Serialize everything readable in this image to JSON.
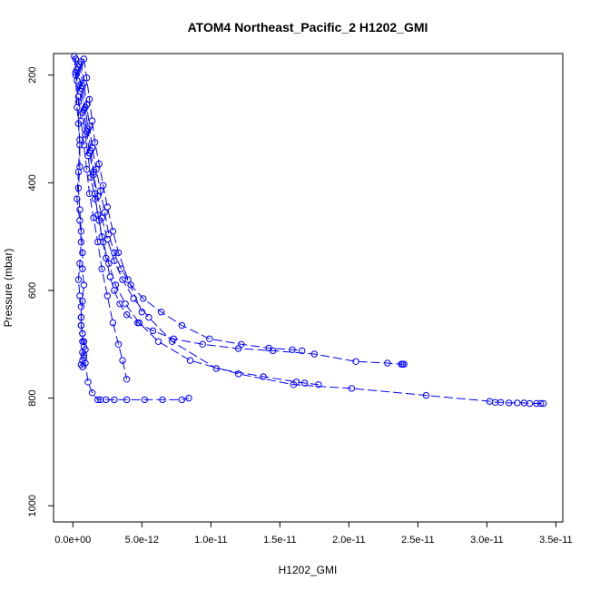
{
  "chart_data": {
    "type": "line",
    "title": "ATOM4 Northeast_Pacific_2 H1202_GMI",
    "xlabel": "H1202_GMI",
    "ylabel": "Pressure (mbar)",
    "xlim": [
      -1.4e-12,
      3.55e-11
    ],
    "ylim": [
      1030,
      160
    ],
    "y_reversed": true,
    "grid": false,
    "x_ticks": [
      {
        "value": 0,
        "label": "0.0e+00"
      },
      {
        "value": 5e-12,
        "label": "5.0e-12"
      },
      {
        "value": 1e-11,
        "label": "1.0e-11"
      },
      {
        "value": 1.5e-11,
        "label": "1.5e-11"
      },
      {
        "value": 2e-11,
        "label": "2.0e-11"
      },
      {
        "value": 2.5e-11,
        "label": "2.5e-11"
      },
      {
        "value": 3e-11,
        "label": "3.0e-11"
      },
      {
        "value": 3.5e-11,
        "label": "3.5e-11"
      }
    ],
    "y_ticks": [
      {
        "value": 200,
        "label": "200"
      },
      {
        "value": 400,
        "label": "400"
      },
      {
        "value": 600,
        "label": "600"
      },
      {
        "value": 800,
        "label": "800"
      },
      {
        "value": 1000,
        "label": "1000"
      }
    ],
    "color": "#0000ff",
    "marker": "open-circle",
    "line_style": "dashed",
    "series": [
      {
        "x": [
          1e-13,
          2e-13,
          3e-13,
          5e-13,
          4e-13,
          3e-13,
          5e-13,
          6e-13,
          5e-13,
          4e-13,
          5e-13,
          6e-13,
          6e-13,
          6e-13,
          7e-13,
          7e-13,
          8e-13,
          7e-13,
          8e-13,
          9e-13,
          1.1e-12,
          1.4e-12,
          1.8e-12,
          2e-12,
          2.4e-12,
          3e-12,
          3.9e-12,
          5.2e-12,
          6.5e-12,
          7.9e-12,
          8.4e-12
        ],
        "y": [
          165,
          200,
          260,
          320,
          380,
          430,
          470,
          510,
          550,
          580,
          610,
          630,
          650,
          665,
          680,
          695,
          705,
          715,
          725,
          735,
          770,
          790,
          803,
          803,
          803,
          803,
          803,
          803,
          803,
          803,
          800
        ]
      },
      {
        "x": [
          2e-13,
          3e-13,
          4e-13,
          4e-13,
          5e-13,
          5e-13,
          4e-13,
          5e-13,
          6e-13,
          7e-13,
          7e-13,
          8e-13,
          7e-13,
          6e-13,
          6e-13,
          7e-13,
          8e-13,
          9e-13,
          8e-13,
          7e-13,
          6e-13,
          7e-13
        ],
        "y": [
          170,
          210,
          250,
          290,
          330,
          370,
          410,
          450,
          490,
          530,
          560,
          590,
          620,
          650,
          665,
          680,
          695,
          710,
          720,
          730,
          738,
          742
        ]
      },
      {
        "x": [
          5e-13,
          7e-13,
          9e-13,
          1.1e-12,
          1.3e-12,
          1.5e-12,
          1.6e-12,
          1.8e-12,
          2.1e-12,
          2.4e-12,
          2.7e-12,
          3e-12,
          3.4e-12,
          3.9e-12,
          4.7e-12,
          5.8e-12,
          7.3e-12,
          9.4e-12,
          1.2e-11,
          1.45e-11,
          1.75e-11,
          2.05e-11,
          2.28e-11,
          2.38e-11,
          2.39e-11,
          2.4e-11
        ],
        "y": [
          180,
          220,
          260,
          300,
          340,
          380,
          420,
          460,
          500,
          540,
          575,
          600,
          625,
          645,
          660,
          675,
          690,
          700,
          708,
          712,
          718,
          732,
          735,
          737,
          737,
          737
        ]
      },
      {
        "x": [
          6e-13,
          8e-13,
          1e-12,
          1.2e-12,
          1.4e-12,
          1.7e-12,
          2e-12,
          2.3e-12,
          2.6e-12,
          3e-12,
          3.5e-12,
          4.2e-12,
          5.1e-12,
          6.4e-12,
          7.9e-12,
          9.9e-12,
          1.22e-11,
          1.42e-11,
          1.59e-11,
          1.66e-11
        ],
        "y": [
          175,
          215,
          255,
          295,
          335,
          375,
          415,
          455,
          495,
          530,
          560,
          590,
          615,
          640,
          665,
          690,
          700,
          707,
          710,
          712
        ]
      },
      {
        "x": [
          4e-13,
          6e-13,
          8e-13,
          1e-12,
          1.2e-12,
          1.5e-12,
          1.8e-12,
          2.1e-12,
          2.5e-12,
          3e-12,
          3.6e-12,
          4.4e-12,
          5.5e-12,
          7.2e-12,
          1.04e-11,
          1.38e-11,
          1.62e-11,
          1.68e-11,
          1.78e-11
        ],
        "y": [
          185,
          225,
          265,
          305,
          345,
          385,
          425,
          465,
          505,
          545,
          580,
          615,
          650,
          695,
          745,
          760,
          770,
          772,
          775
        ]
      },
      {
        "x": [
          3e-13,
          5e-13,
          7e-13,
          9e-13,
          1.1e-12,
          1.3e-12,
          1.6e-12,
          1.9e-12,
          2.2e-12,
          2.6e-12,
          3.1e-12,
          3.8e-12,
          4.8e-12,
          6.2e-12,
          8.5e-12,
          1.2e-11,
          1.6e-11,
          2.02e-11,
          2.56e-11,
          3.02e-11,
          3.06e-11,
          3.1e-11,
          3.16e-11,
          3.22e-11,
          3.27e-11,
          3.31e-11,
          3.36e-11,
          3.39e-11,
          3.41e-11
        ],
        "y": [
          190,
          230,
          270,
          310,
          350,
          390,
          430,
          470,
          510,
          550,
          590,
          625,
          660,
          695,
          730,
          755,
          775,
          782,
          795,
          806,
          808,
          808,
          809,
          809,
          809,
          810,
          810,
          810,
          810
        ]
      },
      {
        "x": [
          2e-13,
          4e-13,
          6e-13,
          8e-13,
          1e-12,
          1.2e-12,
          1.5e-12,
          1.8e-12,
          2.1e-12,
          2.5e-12,
          2.9e-12,
          3.3e-12,
          3.6e-12,
          3.9e-12
        ],
        "y": [
          195,
          240,
          285,
          330,
          375,
          420,
          465,
          510,
          560,
          610,
          660,
          700,
          730,
          765
        ]
      },
      {
        "x": [
          8e-13,
          1e-12,
          1.2e-12,
          1.4e-12,
          1.6e-12,
          1.9e-12,
          2.2e-12,
          2.5e-12,
          2.9e-12,
          3.3e-12,
          4e-12,
          5e-12
        ],
        "y": [
          170,
          205,
          245,
          285,
          325,
          365,
          405,
          445,
          490,
          530,
          580,
          640
        ]
      }
    ]
  }
}
